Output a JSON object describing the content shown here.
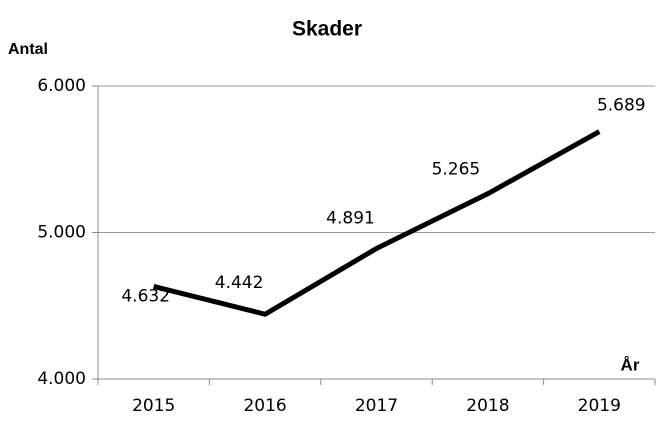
{
  "chart_data": {
    "type": "line",
    "title": "Skader",
    "y_label": "Antal",
    "x_label": "År",
    "categories": [
      "2015",
      "2016",
      "2017",
      "2018",
      "2019"
    ],
    "series": [
      {
        "name": "Skader",
        "color": "#000000",
        "values": [
          4632,
          4442,
          4891,
          5265,
          5689
        ],
        "value_labels": [
          "4.632",
          "4.442",
          "4.891",
          "5.265",
          "5.689"
        ]
      }
    ],
    "ylim": [
      4000,
      6000
    ],
    "yticks": [
      {
        "value": 4000,
        "label": "4.000"
      },
      {
        "value": 5000,
        "label": "5.000"
      },
      {
        "value": 6000,
        "label": "6.000"
      }
    ],
    "grid": true
  }
}
